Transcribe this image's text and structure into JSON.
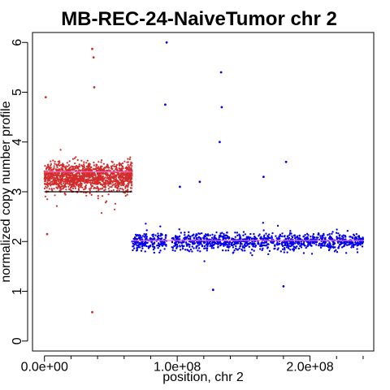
{
  "chart_data": {
    "type": "scatter",
    "title": "MB-REC-24-NaiveTumor chr 2",
    "xlabel": "position, chr 2",
    "ylabel": "normalized copy number profile",
    "xlim": [
      -9000000,
      248000000
    ],
    "ylim": [
      -0.2,
      6.2
    ],
    "x_ticks": [
      0,
      100000000,
      200000000
    ],
    "x_tick_labels": [
      "0.0e+00",
      "1.0e+08",
      "2.0e+08"
    ],
    "y_ticks": [
      0,
      1,
      2,
      3,
      4,
      5,
      6
    ],
    "y_tick_labels": [
      "0",
      "1",
      "2",
      "3",
      "4",
      "5",
      "6"
    ],
    "grid": false,
    "legend": "none",
    "colors": {
      "gain": "#d22c2c",
      "neutral": "#0000ee",
      "segment_gain": "#ff66cc",
      "segment_neutral": "#ff66cc",
      "baseline": "#000000"
    },
    "series": [
      {
        "color_key": "gain",
        "x_range": [
          0,
          66000000
        ],
        "mean": 3.3,
        "spread": 0.25,
        "outliers": [
          [
            1000000,
            4.9
          ],
          [
            36000000,
            5.87
          ],
          [
            37000000,
            5.7
          ],
          [
            37500000,
            5.1
          ],
          [
            36000000,
            0.58
          ],
          [
            2000000,
            2.15
          ]
        ]
      },
      {
        "color_key": "neutral",
        "x_range": [
          66000000,
          240000000
        ],
        "gap": [
          92000000,
          96000000
        ],
        "mean": 2.0,
        "spread": 0.15,
        "outliers": [
          [
            92000000,
            6.0
          ],
          [
            91000000,
            4.75
          ],
          [
            133000000,
            5.4
          ],
          [
            133500000,
            4.7
          ],
          [
            132000000,
            4.0
          ],
          [
            165000000,
            3.3
          ],
          [
            182000000,
            3.6
          ],
          [
            117000000,
            3.2
          ],
          [
            127000000,
            1.03
          ],
          [
            180000000,
            1.1
          ],
          [
            102000000,
            3.1
          ]
        ]
      }
    ],
    "segments": [
      {
        "x": [
          0,
          66000000
        ],
        "y": 3.4,
        "color_key": "segment_gain"
      },
      {
        "x": [
          66000000,
          240000000
        ],
        "y": 2.02,
        "color_key": "segment_neutral"
      },
      {
        "x": [
          0,
          66000000
        ],
        "y": 3.0,
        "color_key": "baseline"
      }
    ]
  }
}
